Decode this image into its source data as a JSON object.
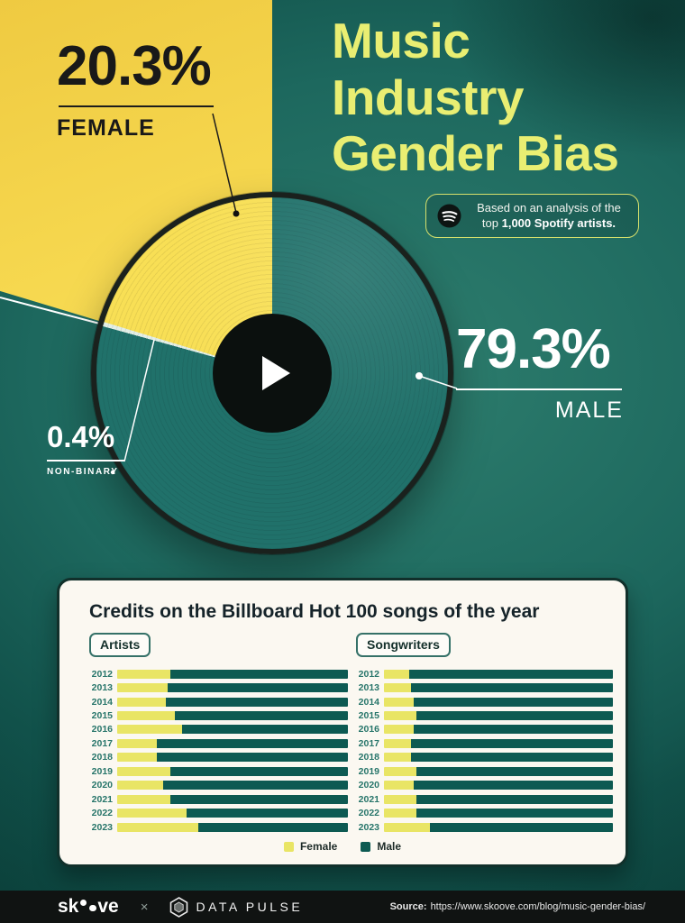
{
  "hero": {
    "title": "Music\nIndustry\nGender Bias",
    "badge": {
      "icon": "spotify-icon",
      "text_normal": "Based on an analysis of the top ",
      "text_bold": "1,000 Spotify artists."
    },
    "stats": {
      "female": {
        "value": "20.3%",
        "label": "FEMALE"
      },
      "male": {
        "value": "79.3%",
        "label": "MALE"
      },
      "non_binary": {
        "value": "0.4%",
        "label": "NON-BINARY"
      }
    }
  },
  "card": {
    "legend": [
      {
        "label": "Female",
        "color": "#e9e565"
      },
      {
        "label": "Male",
        "color": "#0d5a52"
      }
    ]
  },
  "footer": {
    "skoove_prefix": "sk",
    "skoove_suffix": "ve",
    "separator": "×",
    "datapulse_word1": "DATA",
    "datapulse_word2": "PULSE",
    "source_label": "Source:",
    "source_url": "https://www.skoove.com/blog/music-gender-bias/"
  },
  "colors": {
    "background_teal": "#1d685e",
    "accent_yellow": "#f5d64d",
    "title_yellow_green": "#e9ee72",
    "record_teal": "#20716a",
    "card_background": "#fbf8f1",
    "footer_black": "#101312"
  },
  "chart_data": [
    {
      "type": "pie",
      "title": "Top 1,000 Spotify artists by gender",
      "slices": [
        {
          "label": "Male",
          "value": 79.3
        },
        {
          "label": "Non-binary",
          "value": 0.4
        },
        {
          "label": "Female",
          "value": 20.3
        }
      ],
      "colors": {
        "male": "#20716a",
        "non_binary": "#e3efe6",
        "female": "#f8df55"
      }
    },
    {
      "type": "bar",
      "title": "Credits on the Billboard Hot 100 songs of the year",
      "stacked": true,
      "units": "percent of credits",
      "legend": [
        "Female",
        "Male"
      ],
      "legend_position": "bottom",
      "colors": {
        "female": "#e9e565",
        "male": "#0d5a52"
      },
      "years": [
        2012,
        2013,
        2014,
        2015,
        2016,
        2017,
        2018,
        2019,
        2020,
        2021,
        2022,
        2023
      ],
      "charts": [
        {
          "label": "Artists",
          "female_pct": [
            23,
            22,
            21,
            25,
            28,
            17,
            17,
            23,
            20,
            23,
            30,
            35
          ],
          "male_pct": [
            77,
            78,
            79,
            75,
            72,
            83,
            83,
            77,
            80,
            77,
            70,
            65
          ]
        },
        {
          "label": "Songwriters",
          "female_pct": [
            11,
            12,
            13,
            14,
            13,
            12,
            12,
            14,
            13,
            14,
            14,
            20
          ],
          "male_pct": [
            89,
            88,
            87,
            86,
            87,
            88,
            88,
            86,
            87,
            86,
            86,
            80
          ]
        }
      ]
    }
  ]
}
